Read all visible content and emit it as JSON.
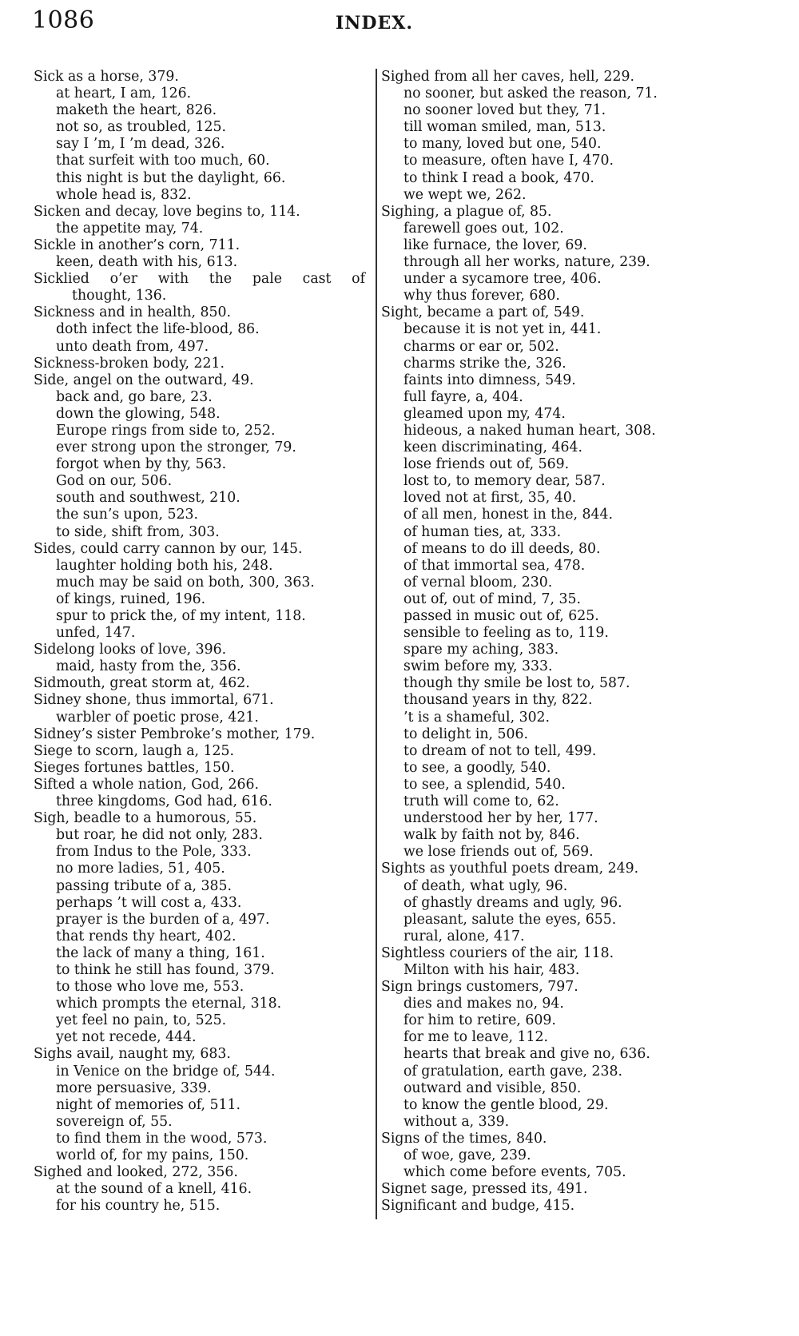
{
  "header": {
    "page_number": "1086",
    "title": "INDEX."
  },
  "columns": [
    [
      {
        "t": "main",
        "s": "Sick as a horse, 379."
      },
      {
        "t": "sub",
        "s": "at heart, I am, 126."
      },
      {
        "t": "sub",
        "s": "maketh the heart, 826."
      },
      {
        "t": "sub",
        "s": "not so, as troubled, 125."
      },
      {
        "t": "sub",
        "s": "say I ’m, I ’m dead, 326."
      },
      {
        "t": "sub",
        "s": "that surfeit with too much, 60."
      },
      {
        "t": "sub",
        "s": "this night is but the daylight, 66."
      },
      {
        "t": "sub",
        "s": "whole head is, 832."
      },
      {
        "t": "main",
        "s": "Sicken and decay, love begins to, 114."
      },
      {
        "t": "sub",
        "s": "the appetite may, 74."
      },
      {
        "t": "main",
        "s": "Sickle in another’s corn, 711."
      },
      {
        "t": "sub",
        "s": "keen, death with his, 613."
      },
      {
        "t": "main just",
        "s": "Sicklied o’er with the pale cast of"
      },
      {
        "t": "cont",
        "s": "thought, 136."
      },
      {
        "t": "main",
        "s": "Sickness and in health, 850."
      },
      {
        "t": "sub",
        "s": "doth infect the life-blood, 86."
      },
      {
        "t": "sub",
        "s": "unto death from, 497."
      },
      {
        "t": "main",
        "s": "Sickness-broken body, 221."
      },
      {
        "t": "main",
        "s": "Side, angel on the outward, 49."
      },
      {
        "t": "sub",
        "s": "back and, go bare, 23."
      },
      {
        "t": "sub",
        "s": "down the glowing, 548."
      },
      {
        "t": "sub",
        "s": "Europe rings from side to, 252."
      },
      {
        "t": "sub",
        "s": "ever strong upon the stronger, 79."
      },
      {
        "t": "sub",
        "s": "forgot when by thy, 563."
      },
      {
        "t": "sub",
        "s": "God on our, 506."
      },
      {
        "t": "sub",
        "s": "south and southwest, 210."
      },
      {
        "t": "sub",
        "s": "the sun’s upon, 523."
      },
      {
        "t": "sub",
        "s": "to side, shift from, 303."
      },
      {
        "t": "main",
        "s": "Sides, could carry cannon by our, 145."
      },
      {
        "t": "sub",
        "s": "laughter holding both his, 248."
      },
      {
        "t": "sub",
        "s": "much may be said on both, 300, 363."
      },
      {
        "t": "sub",
        "s": "of kings, ruined, 196."
      },
      {
        "t": "sub",
        "s": "spur to prick the, of my intent, 118."
      },
      {
        "t": "sub",
        "s": "unfed, 147."
      },
      {
        "t": "main",
        "s": "Sidelong looks of love, 396."
      },
      {
        "t": "sub",
        "s": "maid, hasty from the, 356."
      },
      {
        "t": "main",
        "s": "Sidmouth, great storm at, 462."
      },
      {
        "t": "main",
        "s": "Sidney shone, thus immortal, 671."
      },
      {
        "t": "sub",
        "s": "warbler of poetic prose, 421."
      },
      {
        "t": "main",
        "s": "Sidney’s sister Pembroke’s mother, 179."
      },
      {
        "t": "main",
        "s": "Siege to scorn, laugh a, 125."
      },
      {
        "t": "main",
        "s": "Sieges fortunes battles, 150."
      },
      {
        "t": "main",
        "s": "Sifted a whole nation, God, 266."
      },
      {
        "t": "sub",
        "s": "three kingdoms, God had, 616."
      },
      {
        "t": "main",
        "s": "Sigh, beadle to a humorous, 55."
      },
      {
        "t": "sub",
        "s": "but roar, he did not only, 283."
      },
      {
        "t": "sub",
        "s": "from Indus to the Pole, 333."
      },
      {
        "t": "sub",
        "s": "no more ladies, 51, 405."
      },
      {
        "t": "sub",
        "s": "passing tribute of a, 385."
      },
      {
        "t": "sub",
        "s": "perhaps ’t will cost a, 433."
      },
      {
        "t": "sub",
        "s": "prayer is the burden of a, 497."
      },
      {
        "t": "sub",
        "s": "that rends thy heart, 402."
      },
      {
        "t": "sub",
        "s": "the lack of many a thing, 161."
      },
      {
        "t": "sub",
        "s": "to think he still has found, 379."
      },
      {
        "t": "sub",
        "s": "to those who love me, 553."
      },
      {
        "t": "sub",
        "s": "which prompts the eternal, 318."
      },
      {
        "t": "sub",
        "s": "yet feel no pain, to, 525."
      },
      {
        "t": "sub",
        "s": "yet not recede, 444."
      },
      {
        "t": "main",
        "s": "Sighs avail, naught my, 683."
      },
      {
        "t": "sub",
        "s": "in Venice on the bridge of, 544."
      },
      {
        "t": "sub",
        "s": "more persuasive, 339."
      },
      {
        "t": "sub",
        "s": "night of memories of, 511."
      },
      {
        "t": "sub",
        "s": "sovereign of, 55."
      },
      {
        "t": "sub",
        "s": "to find them in the wood, 573."
      },
      {
        "t": "sub",
        "s": "world of, for my pains, 150."
      },
      {
        "t": "main",
        "s": "Sighed and looked, 272, 356."
      },
      {
        "t": "sub",
        "s": "at the sound of a knell, 416."
      },
      {
        "t": "sub",
        "s": "for his country he, 515."
      }
    ],
    [
      {
        "t": "main",
        "s": "Sighed from all her caves, hell, 229."
      },
      {
        "t": "sub",
        "s": "no sooner, but asked the reason, 71."
      },
      {
        "t": "sub",
        "s": "no sooner loved but they, 71."
      },
      {
        "t": "sub",
        "s": "till woman smiled, man, 513."
      },
      {
        "t": "sub",
        "s": "to many, loved but one, 540."
      },
      {
        "t": "sub",
        "s": "to measure, often have I, 470."
      },
      {
        "t": "sub",
        "s": "to think I read a book, 470."
      },
      {
        "t": "sub",
        "s": "we wept we, 262."
      },
      {
        "t": "main",
        "s": "Sighing, a plague of, 85."
      },
      {
        "t": "sub",
        "s": "farewell goes out, 102."
      },
      {
        "t": "sub",
        "s": "like furnace, the lover, 69."
      },
      {
        "t": "sub",
        "s": "through all her works, nature, 239."
      },
      {
        "t": "sub",
        "s": "under a sycamore tree, 406."
      },
      {
        "t": "sub",
        "s": "why thus forever, 680."
      },
      {
        "t": "main",
        "s": "Sight, became a part of, 549."
      },
      {
        "t": "sub",
        "s": "because it is not yet in, 441."
      },
      {
        "t": "sub",
        "s": "charms or ear or, 502."
      },
      {
        "t": "sub",
        "s": "charms strike the, 326."
      },
      {
        "t": "sub",
        "s": "faints into dimness, 549."
      },
      {
        "t": "sub",
        "s": "full fayre, a, 404."
      },
      {
        "t": "sub",
        "s": "gleamed upon my, 474."
      },
      {
        "t": "sub",
        "s": "hideous, a naked human heart, 308."
      },
      {
        "t": "sub",
        "s": "keen discriminating, 464."
      },
      {
        "t": "sub",
        "s": "lose friends out of, 569."
      },
      {
        "t": "sub",
        "s": "lost to, to memory dear, 587."
      },
      {
        "t": "sub",
        "s": "loved not at first, 35, 40."
      },
      {
        "t": "sub",
        "s": "of all men, honest in the, 844."
      },
      {
        "t": "sub",
        "s": "of human ties, at, 333."
      },
      {
        "t": "sub",
        "s": "of means to do ill deeds, 80."
      },
      {
        "t": "sub",
        "s": "of that immortal sea, 478."
      },
      {
        "t": "sub",
        "s": "of vernal bloom, 230."
      },
      {
        "t": "sub",
        "s": "out of, out of mind, 7, 35."
      },
      {
        "t": "sub",
        "s": "passed in music out of, 625."
      },
      {
        "t": "sub",
        "s": "sensible to feeling as to, 119."
      },
      {
        "t": "sub",
        "s": "spare my aching, 383."
      },
      {
        "t": "sub",
        "s": "swim before my, 333."
      },
      {
        "t": "sub",
        "s": "though thy smile be lost to, 587."
      },
      {
        "t": "sub",
        "s": "thousand years in thy, 822."
      },
      {
        "t": "sub",
        "s": "’t is a shameful, 302."
      },
      {
        "t": "sub",
        "s": "to delight in, 506."
      },
      {
        "t": "sub",
        "s": "to dream of not to tell, 499."
      },
      {
        "t": "sub",
        "s": "to see, a goodly, 540."
      },
      {
        "t": "sub",
        "s": "to see, a splendid, 540."
      },
      {
        "t": "sub",
        "s": "truth will come to, 62."
      },
      {
        "t": "sub",
        "s": "understood her by her, 177."
      },
      {
        "t": "sub",
        "s": "walk by faith not by, 846."
      },
      {
        "t": "sub",
        "s": "we lose friends out of, 569."
      },
      {
        "t": "main",
        "s": "Sights as youthful poets dream, 249."
      },
      {
        "t": "sub",
        "s": "of death, what ugly, 96."
      },
      {
        "t": "sub",
        "s": "of ghastly dreams and ugly, 96."
      },
      {
        "t": "sub",
        "s": "pleasant, salute the eyes, 655."
      },
      {
        "t": "sub",
        "s": "rural, alone, 417."
      },
      {
        "t": "main",
        "s": "Sightless couriers of the air, 118."
      },
      {
        "t": "sub",
        "s": "Milton with his hair, 483."
      },
      {
        "t": "main",
        "s": "Sign brings customers, 797."
      },
      {
        "t": "sub",
        "s": "dies and makes no, 94."
      },
      {
        "t": "sub",
        "s": "for him to retire, 609."
      },
      {
        "t": "sub",
        "s": "for me to leave, 112."
      },
      {
        "t": "sub",
        "s": "hearts that break and give no, 636."
      },
      {
        "t": "sub",
        "s": "of gratulation, earth gave, 238."
      },
      {
        "t": "sub",
        "s": "outward and visible, 850."
      },
      {
        "t": "sub",
        "s": "to know the gentle blood, 29."
      },
      {
        "t": "sub",
        "s": "without a, 339."
      },
      {
        "t": "main",
        "s": "Signs of the times, 840."
      },
      {
        "t": "sub",
        "s": "of woe, gave, 239."
      },
      {
        "t": "sub",
        "s": "which come before events, 705."
      },
      {
        "t": "main",
        "s": "Signet sage, pressed its, 491."
      },
      {
        "t": "main",
        "s": "Significant and budge, 415."
      }
    ]
  ]
}
